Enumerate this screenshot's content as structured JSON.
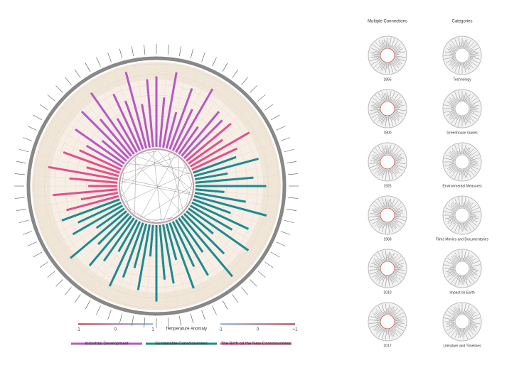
{
  "chart_data": {
    "type": "radial-bar",
    "rlim": [
      0,
      100
    ],
    "legend": "bottom",
    "series": [
      {
        "name": "Industrial Development",
        "color": "#b45ac4",
        "values": [
          85,
          60,
          92,
          45,
          78,
          55,
          88,
          40,
          70,
          65,
          null,
          null,
          null,
          null,
          null,
          null,
          null,
          null,
          null,
          null,
          null,
          null,
          null,
          null,
          null,
          null,
          null,
          null,
          null,
          null,
          null,
          null,
          null,
          null,
          null,
          null,
          null,
          null,
          null,
          null,
          null,
          null,
          null,
          null,
          null,
          null,
          null,
          null,
          null,
          null,
          null,
          null,
          null,
          null,
          null,
          null,
          null,
          null,
          null,
          null,
          50,
          72,
          38,
          80,
          58,
          90,
          47,
          75,
          62,
          95,
          53,
          82
        ]
      },
      {
        "name": "Sustainable Consciousness",
        "color": "#1d8a8f",
        "values": [
          null,
          null,
          null,
          null,
          null,
          null,
          null,
          null,
          null,
          null,
          null,
          null,
          null,
          null,
          55,
          80,
          40,
          70,
          85,
          35,
          62,
          90,
          48,
          75,
          58,
          88,
          42,
          68,
          95,
          50,
          77,
          60,
          84,
          45,
          72,
          66,
          92,
          38,
          80,
          55,
          70,
          86,
          44,
          63,
          78,
          52,
          88,
          41,
          69,
          57,
          74,
          null,
          null,
          null,
          null,
          null,
          null,
          null,
          null,
          null,
          null,
          null,
          null,
          null,
          null,
          null,
          null,
          null,
          null,
          null,
          null,
          null
        ]
      },
      {
        "name": "The Birth od the New Consciousness",
        "color": "#e0508c",
        "values": [
          null,
          null,
          null,
          null,
          null,
          null,
          null,
          null,
          null,
          null,
          70,
          50,
          82,
          60,
          null,
          null,
          null,
          null,
          null,
          null,
          null,
          null,
          null,
          null,
          null,
          null,
          null,
          null,
          null,
          null,
          null,
          null,
          null,
          null,
          null,
          null,
          null,
          null,
          null,
          null,
          null,
          null,
          null,
          null,
          null,
          null,
          null,
          null,
          null,
          null,
          null,
          65,
          45,
          78,
          35,
          58,
          85,
          40,
          72,
          55,
          null,
          null,
          null,
          null,
          null,
          null,
          null,
          null,
          null,
          null,
          null,
          null
        ]
      }
    ]
  },
  "anomaly_scale": {
    "title": "Temperature Anomaly",
    "left_ticks": [
      -1,
      0,
      1
    ],
    "right_ticks": [
      -1,
      0,
      {
        "value": 1,
        "label": "+1"
      }
    ]
  },
  "small_multiples": {
    "left_title": "Multiple Connections",
    "right_title": "Categories",
    "left_labels": [
      "1865",
      "1900",
      "1925",
      "1968",
      "2010",
      "2017"
    ],
    "right_labels": [
      "Technology",
      "Greenhouse Gases",
      "Environmental Measures",
      "Films Movies and Documentaries",
      "Impact on Earth",
      "Literature and Timelines"
    ]
  }
}
